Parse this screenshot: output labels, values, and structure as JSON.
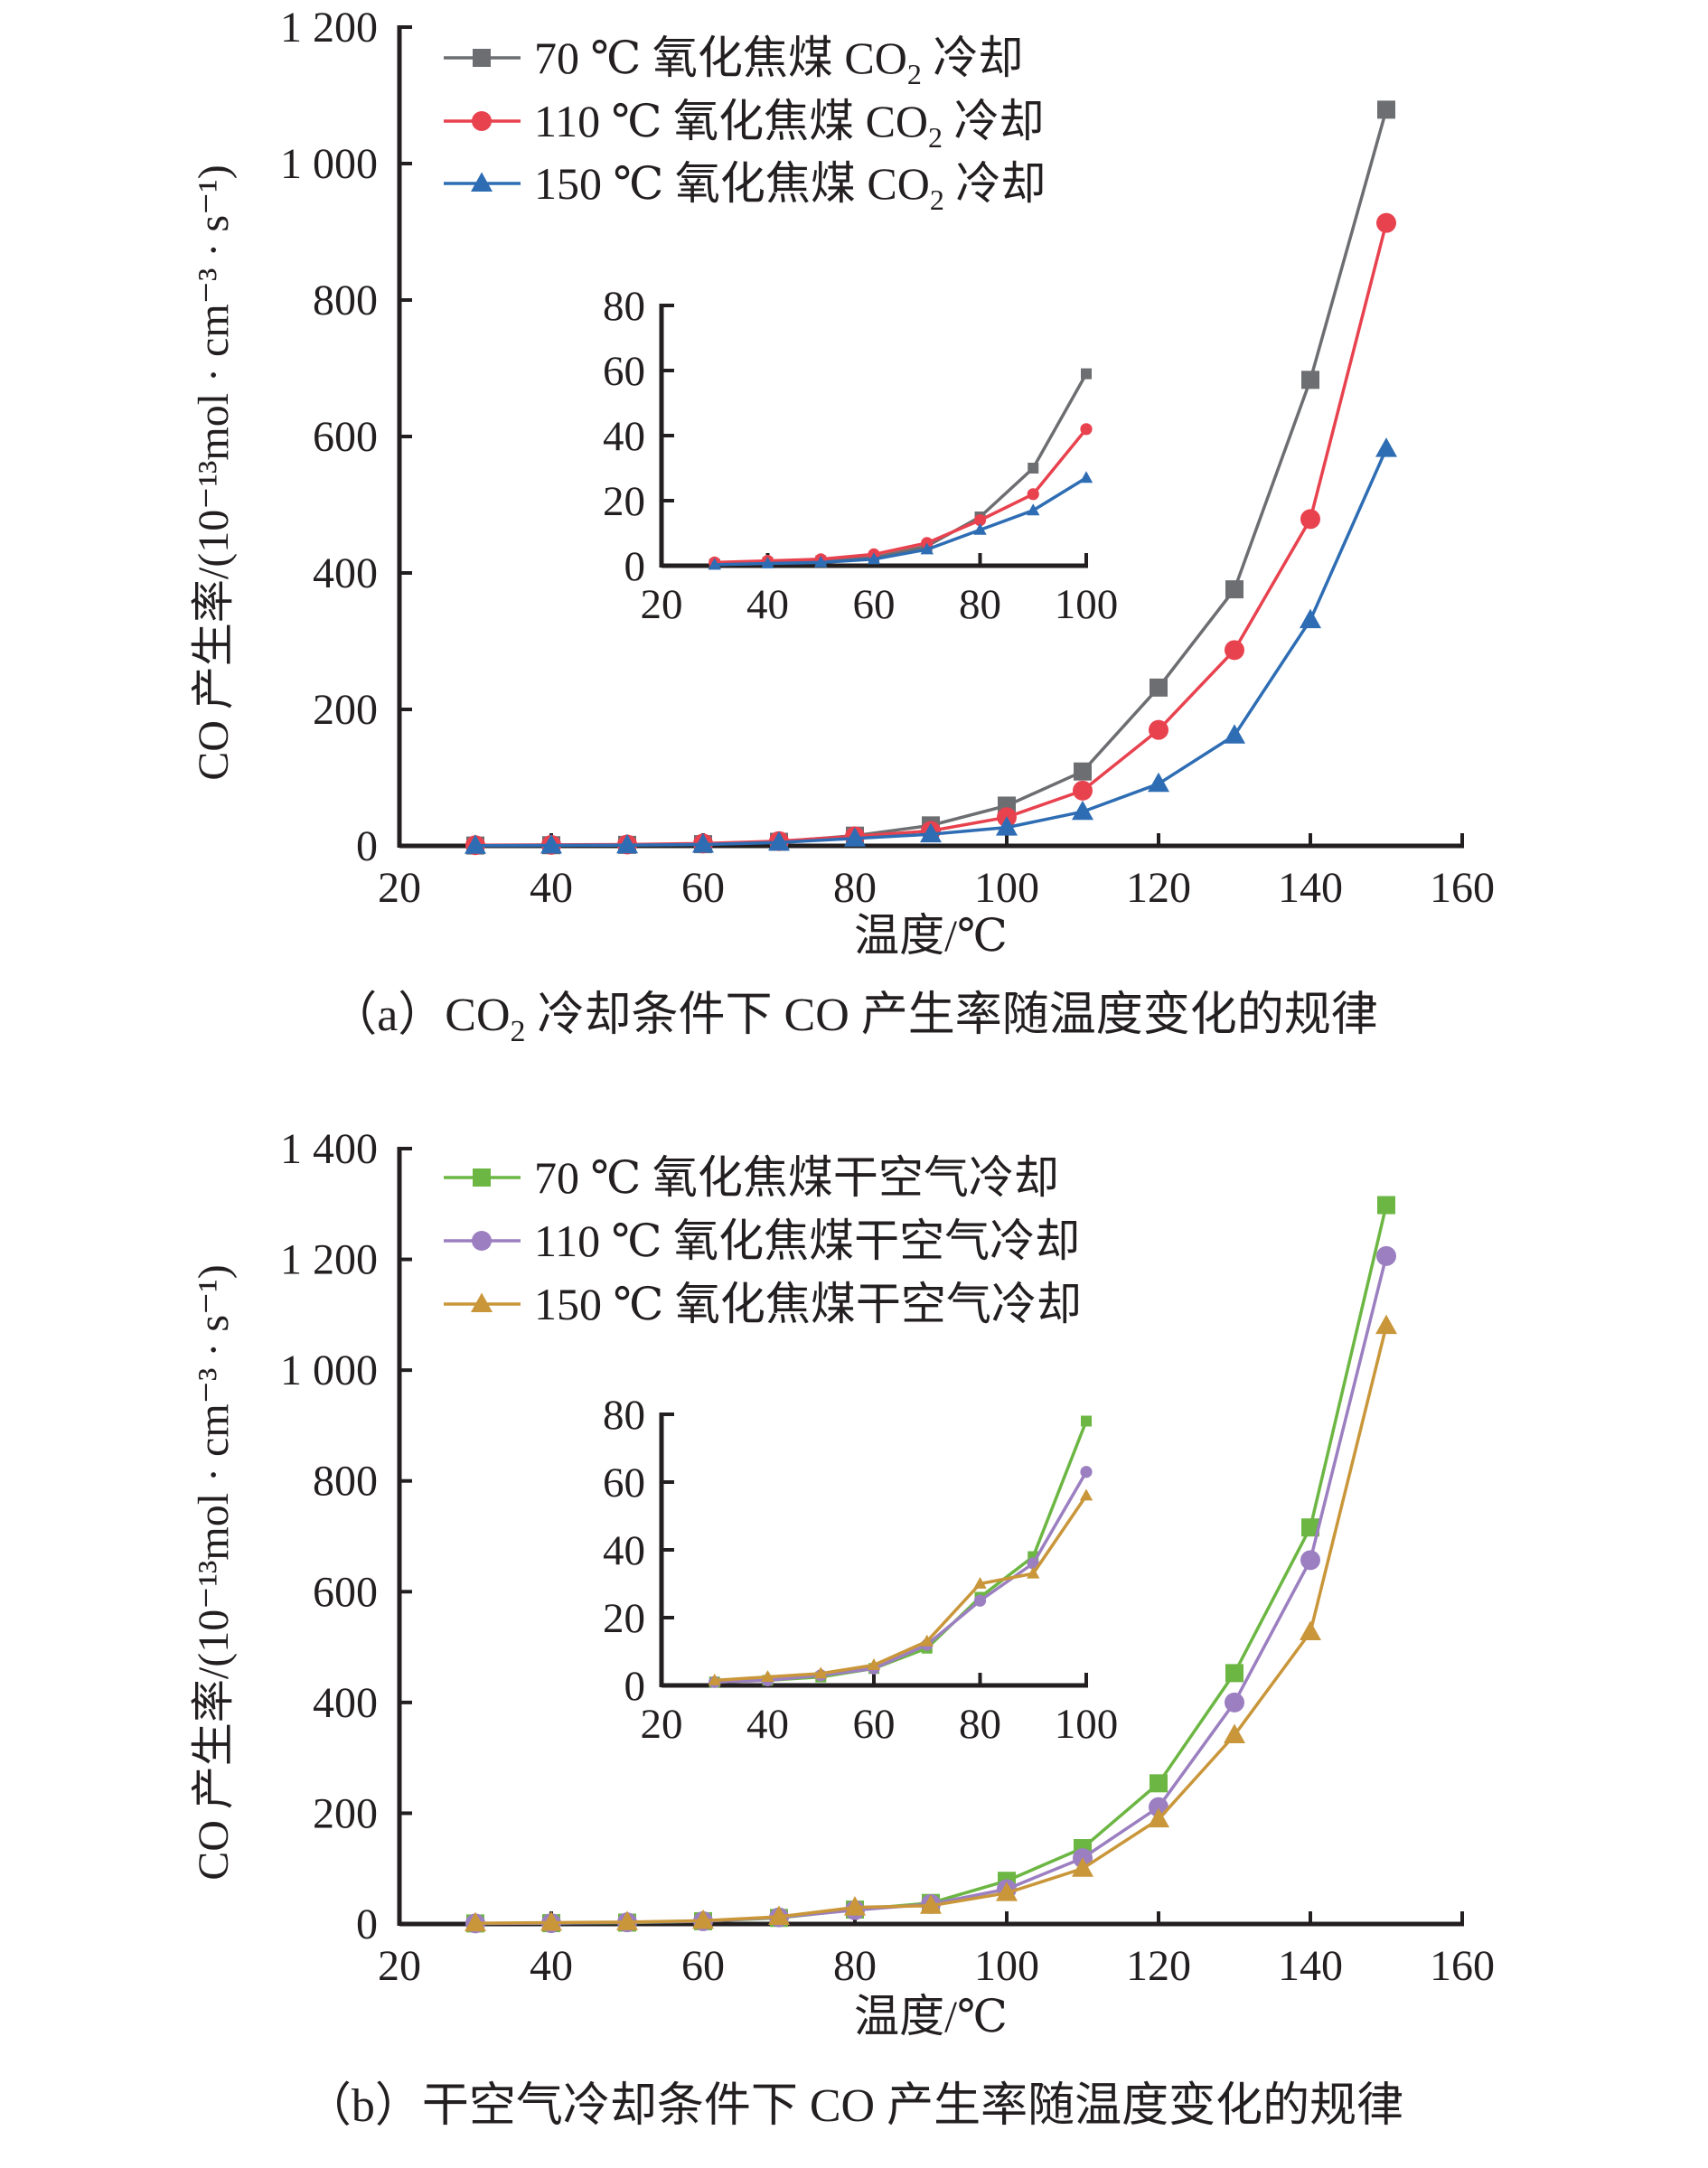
{
  "chart_data": [
    {
      "type": "line",
      "id": "a",
      "caption": {
        "prefix": "（a）CO",
        "sub": "2",
        "suffix": " 冷却条件下 CO 产生率随温度变化的规律"
      },
      "xlabel": "温度/℃",
      "ylabel": "CO 产生率/(10⁻¹³mol · cm⁻³ · s⁻¹)",
      "xlim": [
        20,
        160
      ],
      "ylim": [
        0,
        1200
      ],
      "xticks": [
        "20",
        "40",
        "60",
        "80",
        "100",
        "120",
        "140",
        "160"
      ],
      "yticks": [
        "0",
        "200",
        "400",
        "600",
        "800",
        "1 000",
        "1 200"
      ],
      "legend_position": "top-left",
      "x": [
        30,
        40,
        50,
        60,
        70,
        80,
        90,
        100,
        110,
        120,
        130,
        140,
        150
      ],
      "series": [
        {
          "name": {
            "prefix": "70 ℃ 氧化焦煤 CO",
            "sub": "2",
            "suffix": " 冷却"
          },
          "color": "#6d6e71",
          "marker": "square",
          "values": [
            0.5,
            1,
            1.5,
            2.5,
            6,
            15,
            30,
            59,
            109,
            232,
            376,
            683,
            1079
          ]
        },
        {
          "name": {
            "prefix": "110 ℃ 氧化焦煤 CO",
            "sub": "2",
            "suffix": " 冷却"
          },
          "color": "#e8424f",
          "marker": "circle",
          "values": [
            1,
            1.5,
            2,
            3.5,
            7,
            14,
            22,
            42,
            81,
            170,
            287,
            479,
            913
          ]
        },
        {
          "name": {
            "prefix": "150 ℃ 氧化焦煤 CO",
            "sub": "2",
            "suffix": " 冷却"
          },
          "color": "#2e6db4",
          "marker": "triangle",
          "values": [
            0.3,
            0.7,
            1,
            2,
            5,
            11,
            17,
            27,
            50,
            91,
            162,
            331,
            582
          ]
        }
      ],
      "inset": {
        "xlim": [
          20,
          100
        ],
        "ylim": [
          0,
          80
        ],
        "xticks": [
          "20",
          "40",
          "60",
          "80",
          "100"
        ],
        "yticks": [
          "0",
          "20",
          "40",
          "60",
          "80"
        ]
      }
    },
    {
      "type": "line",
      "id": "b",
      "caption": {
        "prefix": "（b）干空气冷却条件下 CO 产生率随温度变化的规律",
        "sub": "",
        "suffix": ""
      },
      "xlabel": "温度/℃",
      "ylabel": "CO 产生率/(10⁻¹³mol · cm⁻³ · s⁻¹)",
      "xlim": [
        20,
        160
      ],
      "ylim": [
        0,
        1400
      ],
      "xticks": [
        "20",
        "40",
        "60",
        "80",
        "100",
        "120",
        "140",
        "160"
      ],
      "yticks": [
        "0",
        "200",
        "400",
        "600",
        "800",
        "1 000",
        "1 200",
        "1 400"
      ],
      "legend_position": "top-left",
      "x": [
        30,
        40,
        50,
        60,
        70,
        80,
        90,
        100,
        110,
        120,
        130,
        140,
        150
      ],
      "series": [
        {
          "name": {
            "prefix": "70 ℃ 氧化焦煤干空气冷却",
            "sub": "",
            "suffix": ""
          },
          "color": "#6cb643",
          "marker": "square",
          "values": [
            1,
            1.5,
            2.5,
            5,
            11,
            26,
            38,
            78,
            137,
            254,
            453,
            716,
            1298
          ]
        },
        {
          "name": {
            "prefix": "110 ℃ 氧化焦煤干空气冷却",
            "sub": "",
            "suffix": ""
          },
          "color": "#9b7fc0",
          "marker": "circle",
          "values": [
            1,
            1.5,
            3,
            5,
            12,
            25,
            36,
            63,
            119,
            211,
            400,
            657,
            1206
          ]
        },
        {
          "name": {
            "prefix": "150 ℃ 氧化焦煤干空气冷却",
            "sub": "",
            "suffix": ""
          },
          "color": "#c9963a",
          "marker": "triangle",
          "values": [
            1.5,
            2.5,
            3.5,
            6,
            13,
            30,
            33,
            56,
            100,
            189,
            341,
            527,
            1080
          ]
        }
      ],
      "inset": {
        "xlim": [
          20,
          100
        ],
        "ylim": [
          0,
          80
        ],
        "xticks": [
          "20",
          "40",
          "60",
          "80",
          "100"
        ],
        "yticks": [
          "0",
          "20",
          "40",
          "60",
          "80"
        ]
      }
    }
  ]
}
